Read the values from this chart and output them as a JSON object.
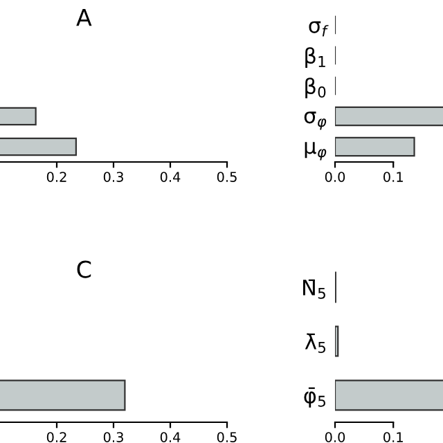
{
  "chart_data": [
    {
      "type": "bar",
      "orientation": "horizontal",
      "title": "A",
      "categories": [
        null,
        null
      ],
      "values": [
        0.163,
        0.234
      ],
      "color": "#c3cbcb",
      "xlim": [
        0.1,
        0.5
      ],
      "xticks": [
        0.2,
        0.3,
        0.4,
        0.5
      ]
    },
    {
      "type": "bar",
      "orientation": "horizontal",
      "categories": [
        "σ$_{f}$",
        "β$_{1}$",
        "β$_{0}$",
        "σ$_{φ}$",
        "μ$_{φ}$"
      ],
      "values": [
        0,
        0,
        0,
        0.19,
        0.136
      ],
      "colors": [
        "#333333",
        "#333333",
        "#333333",
        "#c3cbcb",
        "#c3cbcb"
      ],
      "xlim": [
        0,
        0.19
      ],
      "xticks": [
        {
          "value": 0,
          "label": "0.0"
        },
        0.1
      ]
    },
    {
      "type": "bar",
      "orientation": "horizontal",
      "title": "C",
      "categories": [
        null
      ],
      "values": [
        0.32
      ],
      "color": "#c3cbcb",
      "xlim": [
        0.1,
        0.5
      ],
      "xticks": [
        0.2,
        0.3,
        0.4,
        0.5
      ]
    },
    {
      "type": "bar",
      "orientation": "horizontal",
      "categories": [
        "N̄$_{5}$",
        "λ̄$_{5}$",
        "φ̄$_{5}$"
      ],
      "values": [
        0.001,
        0.005,
        0.19
      ],
      "colors": [
        "#333333",
        "#c3cbcb",
        "#c3cbcb"
      ],
      "xlim": [
        0,
        0.19
      ],
      "xticks": [
        {
          "value": 0,
          "label": "0.0"
        },
        0.1
      ]
    }
  ]
}
